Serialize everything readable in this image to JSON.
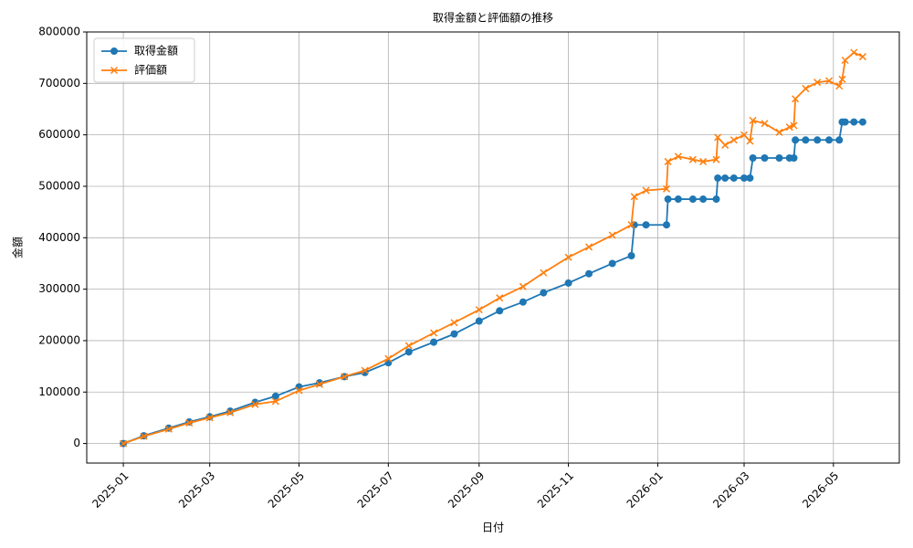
{
  "chart_data": {
    "type": "line",
    "title": "取得金額と評価額の推移",
    "x_label": "日付",
    "y_label": "金額",
    "x": [
      "2025-01-01",
      "2025-01-15",
      "2025-02-01",
      "2025-02-15",
      "2025-03-01",
      "2025-03-15",
      "2025-04-01",
      "2025-04-15",
      "2025-05-01",
      "2025-05-15",
      "2025-06-01",
      "2025-06-15",
      "2025-07-01",
      "2025-07-15",
      "2025-08-01",
      "2025-08-15",
      "2025-09-01",
      "2025-09-15",
      "2025-10-01",
      "2025-10-15",
      "2025-11-01",
      "2025-11-15",
      "2025-12-01",
      "2025-12-14",
      "2025-12-16",
      "2025-12-24",
      "2026-01-07",
      "2026-01-08",
      "2026-01-15",
      "2026-01-25",
      "2026-02-01",
      "2026-02-10",
      "2026-02-11",
      "2026-02-16",
      "2026-02-22",
      "2026-03-01",
      "2026-03-05",
      "2026-03-07",
      "2026-03-15",
      "2026-03-25",
      "2026-04-01",
      "2026-04-04",
      "2026-04-05",
      "2026-04-12",
      "2026-04-20",
      "2026-04-28",
      "2026-05-05",
      "2026-05-07",
      "2026-05-09",
      "2026-05-15",
      "2026-05-21"
    ],
    "series": [
      {
        "name": "取得金額",
        "color": "#1f77b4",
        "marker": "o",
        "values": [
          0,
          15000,
          30000,
          42000,
          52000,
          63000,
          80000,
          92000,
          110000,
          118000,
          130000,
          138000,
          157000,
          178000,
          197000,
          213000,
          238000,
          258000,
          275000,
          293000,
          312000,
          330000,
          350000,
          365000,
          425000,
          425000,
          425000,
          475000,
          475000,
          475000,
          475000,
          475000,
          516000,
          516000,
          516000,
          516000,
          516000,
          555000,
          555000,
          555000,
          555000,
          555000,
          590000,
          590000,
          590000,
          590000,
          590000,
          625000,
          625000,
          625000,
          625000
        ]
      },
      {
        "name": "評価額",
        "color": "#ff7f0e",
        "marker": "x",
        "values": [
          0,
          14000,
          28000,
          40000,
          50000,
          60000,
          76000,
          82000,
          103000,
          115000,
          130000,
          142000,
          165000,
          190000,
          215000,
          235000,
          260000,
          283000,
          305000,
          332000,
          362000,
          382000,
          405000,
          425000,
          480000,
          492000,
          495000,
          548000,
          558000,
          552000,
          548000,
          552000,
          595000,
          580000,
          590000,
          600000,
          588000,
          628000,
          622000,
          605000,
          615000,
          618000,
          670000,
          690000,
          702000,
          705000,
          695000,
          708000,
          745000,
          760000,
          752000
        ]
      }
    ],
    "xlim": [
      "2024-12-07",
      "2026-06-15"
    ],
    "xticks": [
      {
        "value": "2025-01-01",
        "label": "2025-01"
      },
      {
        "value": "2025-03-01",
        "label": "2025-03"
      },
      {
        "value": "2025-05-01",
        "label": "2025-05"
      },
      {
        "value": "2025-07-01",
        "label": "2025-07"
      },
      {
        "value": "2025-09-01",
        "label": "2025-09"
      },
      {
        "value": "2025-11-01",
        "label": "2025-11"
      },
      {
        "value": "2026-01-01",
        "label": "2026-01"
      },
      {
        "value": "2026-03-01",
        "label": "2026-03"
      },
      {
        "value": "2026-05-01",
        "label": "2026-05"
      }
    ],
    "ylim": [
      -38000,
      800000
    ],
    "yticks": [
      0,
      100000,
      200000,
      300000,
      400000,
      500000,
      600000,
      700000,
      800000
    ],
    "grid": true,
    "legend": "upper left"
  }
}
